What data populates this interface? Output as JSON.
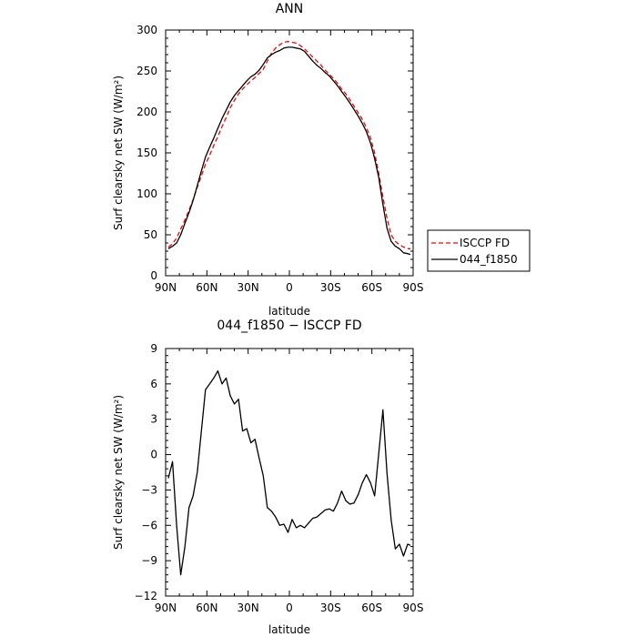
{
  "chart_data": [
    {
      "type": "line",
      "title": "ANN",
      "xlabel": "latitude",
      "ylabel": "Surf clearsky net SW (W/m²)",
      "xlim": [
        90,
        -90
      ],
      "ylim": [
        0,
        300
      ],
      "x_ticks": [
        "90N",
        "60N",
        "30N",
        "0",
        "30S",
        "60S",
        "90S"
      ],
      "y_ticks": [
        "0",
        "50",
        "100",
        "150",
        "200",
        "250",
        "300"
      ],
      "legend_position": "right",
      "series": [
        {
          "name": "ISCCP FD",
          "color": "#ff0000",
          "dash": "dashed",
          "x": [
            88,
            85,
            82,
            79,
            76,
            73,
            70,
            67,
            64,
            61,
            58,
            55,
            52,
            49,
            46,
            43,
            40,
            37,
            34,
            31,
            28,
            25,
            22,
            19,
            16,
            13,
            10,
            7,
            4,
            1,
            -2,
            -5,
            -8,
            -11,
            -14,
            -17,
            -20,
            -23,
            -26,
            -29,
            -32,
            -35,
            -38,
            -41,
            -44,
            -47,
            -50,
            -53,
            -56,
            -59,
            -62,
            -65,
            -68,
            -71,
            -74,
            -77,
            -80,
            -83,
            -86,
            -88
          ],
          "y": [
            35,
            39,
            46,
            57,
            68,
            80,
            93,
            108,
            122,
            136,
            147,
            159,
            170,
            182,
            193,
            205,
            214,
            222,
            228,
            233,
            238,
            242,
            247,
            252,
            262,
            272,
            278,
            282,
            285,
            286,
            285,
            284,
            281,
            277,
            272,
            267,
            262,
            257,
            251,
            246,
            241,
            235,
            228,
            222,
            215,
            207,
            199,
            191,
            181,
            168,
            150,
            125,
            96,
            70,
            50,
            42,
            38,
            35,
            33,
            33
          ]
        },
        {
          "name": "044_f1850",
          "color": "#000000",
          "dash": "solid",
          "x": [
            88,
            85,
            82,
            79,
            76,
            73,
            70,
            67,
            64,
            61,
            58,
            55,
            52,
            49,
            46,
            43,
            40,
            37,
            34,
            31,
            28,
            25,
            22,
            19,
            16,
            13,
            10,
            7,
            4,
            1,
            -2,
            -5,
            -8,
            -11,
            -14,
            -17,
            -20,
            -23,
            -26,
            -29,
            -32,
            -35,
            -38,
            -41,
            -44,
            -47,
            -50,
            -53,
            -56,
            -59,
            -62,
            -65,
            -68,
            -71,
            -74,
            -77,
            -80,
            -83,
            -86,
            -88
          ],
          "y": [
            33,
            36,
            40,
            50,
            64,
            77,
            92,
            110,
            128,
            145,
            157,
            168,
            180,
            192,
            202,
            212,
            220,
            226,
            232,
            238,
            243,
            246,
            251,
            258,
            266,
            270,
            273,
            275,
            278,
            279,
            279,
            278,
            277,
            274,
            268,
            262,
            257,
            253,
            248,
            244,
            238,
            232,
            225,
            218,
            211,
            203,
            195,
            186,
            176,
            162,
            143,
            120,
            87,
            58,
            42,
            36,
            33,
            28,
            27,
            26
          ]
        }
      ]
    },
    {
      "type": "line",
      "title": "044_f1850 − ISCCP FD",
      "xlabel": "latitude",
      "ylabel": "Surf clearsky net SW (W/m²)",
      "xlim": [
        90,
        -90
      ],
      "ylim": [
        -12,
        9
      ],
      "x_ticks": [
        "90N",
        "60N",
        "30N",
        "0",
        "30S",
        "60S",
        "90S"
      ],
      "y_ticks": [
        "−12",
        "−9",
        "−6",
        "−3",
        "0",
        "3",
        "6",
        "9"
      ],
      "series": [
        {
          "color": "#000000",
          "dash": "solid",
          "x": [
            88,
            85,
            82,
            79,
            76,
            73,
            70,
            67,
            64,
            61,
            58,
            55,
            52,
            49,
            46,
            43,
            40,
            37,
            34,
            31,
            28,
            25,
            22,
            19,
            16,
            13,
            10,
            7,
            4,
            1,
            -2,
            -5,
            -8,
            -11,
            -14,
            -17,
            -20,
            -23,
            -26,
            -29,
            -32,
            -35,
            -38,
            -41,
            -44,
            -47,
            -50,
            -53,
            -56,
            -59,
            -62,
            -65,
            -68,
            -71,
            -74,
            -77,
            -80,
            -83,
            -86,
            -88
          ],
          "y": [
            -2.0,
            -0.6,
            -6.0,
            -10.2,
            -7.8,
            -4.5,
            -3.5,
            -1.5,
            2.0,
            5.5,
            6.0,
            6.5,
            7.1,
            6.0,
            6.5,
            5.0,
            4.3,
            4.7,
            2.0,
            2.2,
            1.0,
            1.3,
            -0.3,
            -1.8,
            -4.5,
            -4.8,
            -5.3,
            -6.0,
            -5.9,
            -6.6,
            -5.5,
            -6.2,
            -6.0,
            -6.2,
            -5.8,
            -5.4,
            -5.3,
            -5.0,
            -4.7,
            -4.6,
            -4.8,
            -4.1,
            -3.1,
            -3.9,
            -4.2,
            -4.1,
            -3.4,
            -2.4,
            -1.7,
            -2.4,
            -3.5,
            0.1,
            3.8,
            -1.6,
            -5.5,
            -8.0,
            -7.6,
            -8.6,
            -7.6,
            -7.7
          ]
        }
      ]
    }
  ]
}
